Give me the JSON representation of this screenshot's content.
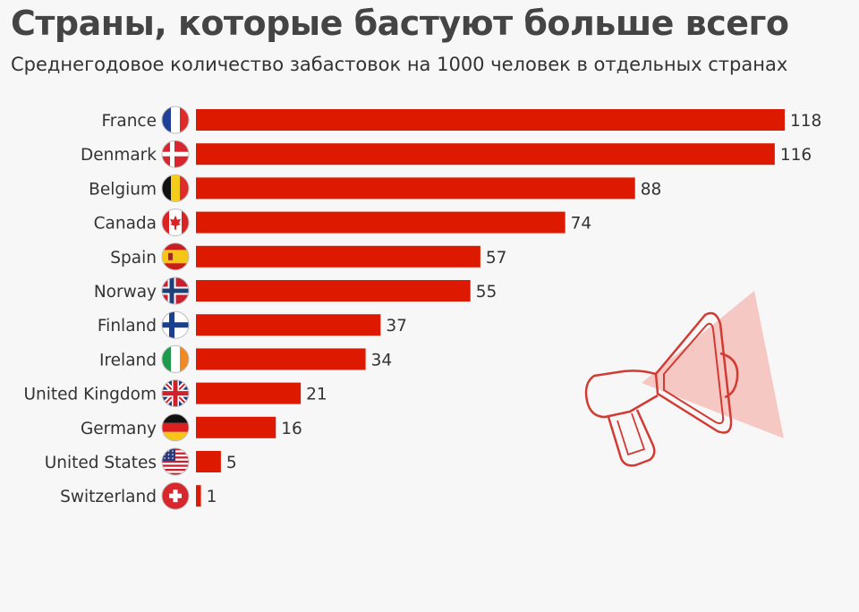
{
  "header": {
    "title": "Страны, которые бастуют больше всего",
    "subtitle": "Среднегодовое количество забастовок на 1000 человек в отдельных странах"
  },
  "colors": {
    "bar": "#dd1a00",
    "text": "#333333",
    "title": "#444444",
    "background": "#f7f7f7",
    "megaphone_stroke": "#d23b33",
    "megaphone_cone": "#f6c8c4"
  },
  "icons": {
    "decoration": "megaphone-icon"
  },
  "chart_data": {
    "type": "bar",
    "orientation": "horizontal",
    "title": "Страны, которые бастуют больше всего",
    "subtitle": "Среднегодовое количество забастовок на 1000 человек в отдельных странах",
    "categories": [
      "France",
      "Denmark",
      "Belgium",
      "Canada",
      "Spain",
      "Norway",
      "Finland",
      "Ireland",
      "United Kingdom",
      "Germany",
      "United States",
      "Switzerland"
    ],
    "values": [
      118,
      116,
      88,
      74,
      57,
      55,
      37,
      34,
      21,
      16,
      5,
      1
    ],
    "flags": [
      "france-flag-icon",
      "denmark-flag-icon",
      "belgium-flag-icon",
      "canada-flag-icon",
      "spain-flag-icon",
      "norway-flag-icon",
      "finland-flag-icon",
      "ireland-flag-icon",
      "united-kingdom-flag-icon",
      "germany-flag-icon",
      "united-states-flag-icon",
      "switzerland-flag-icon"
    ],
    "xlim": [
      0,
      118
    ],
    "data_labels": true,
    "grid": false,
    "legend": "none"
  }
}
